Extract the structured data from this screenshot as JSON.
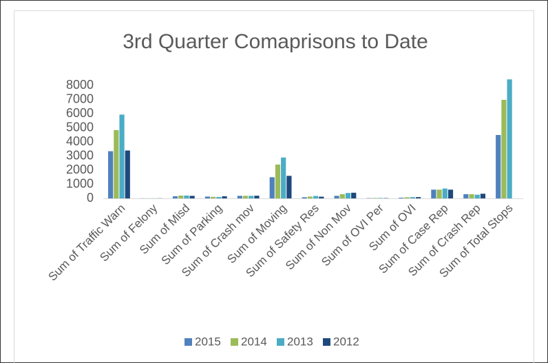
{
  "chart_data": {
    "type": "bar",
    "title": "3rd Quarter Comaprisons to Date",
    "categories": [
      "Sum of Traffic Warn",
      "Sum of Felony",
      "Sum of Misd",
      "Sum of Parking",
      "Sum of Crash mov",
      "Sum of Moving",
      "Sum of Safety Res",
      "Sum of Non Mov",
      "Sum of OVI Per",
      "Sum of OVI",
      "Sum of Case Rep",
      "Sum of Crash Rep",
      "Sum of Total Stops"
    ],
    "series": [
      {
        "name": "2015",
        "color": "#4f81bd",
        "values": [
          3350,
          10,
          150,
          130,
          180,
          1500,
          80,
          180,
          20,
          50,
          620,
          300,
          4500
        ]
      },
      {
        "name": "2014",
        "color": "#9bbb59",
        "values": [
          4850,
          10,
          200,
          110,
          180,
          2400,
          130,
          300,
          30,
          80,
          620,
          300,
          7000
        ]
      },
      {
        "name": "2013",
        "color": "#4bacc6",
        "values": [
          5950,
          10,
          200,
          100,
          180,
          2900,
          170,
          380,
          30,
          90,
          700,
          260,
          8450
        ]
      },
      {
        "name": "2012",
        "color": "#1f497d",
        "values": [
          3400,
          10,
          180,
          150,
          190,
          1600,
          120,
          400,
          20,
          90,
          620,
          330,
          null
        ]
      }
    ],
    "ylim": [
      0,
      9000
    ],
    "yticks": [
      0,
      1000,
      2000,
      3000,
      4000,
      5000,
      6000,
      7000,
      8000
    ],
    "legend": "bottom"
  }
}
